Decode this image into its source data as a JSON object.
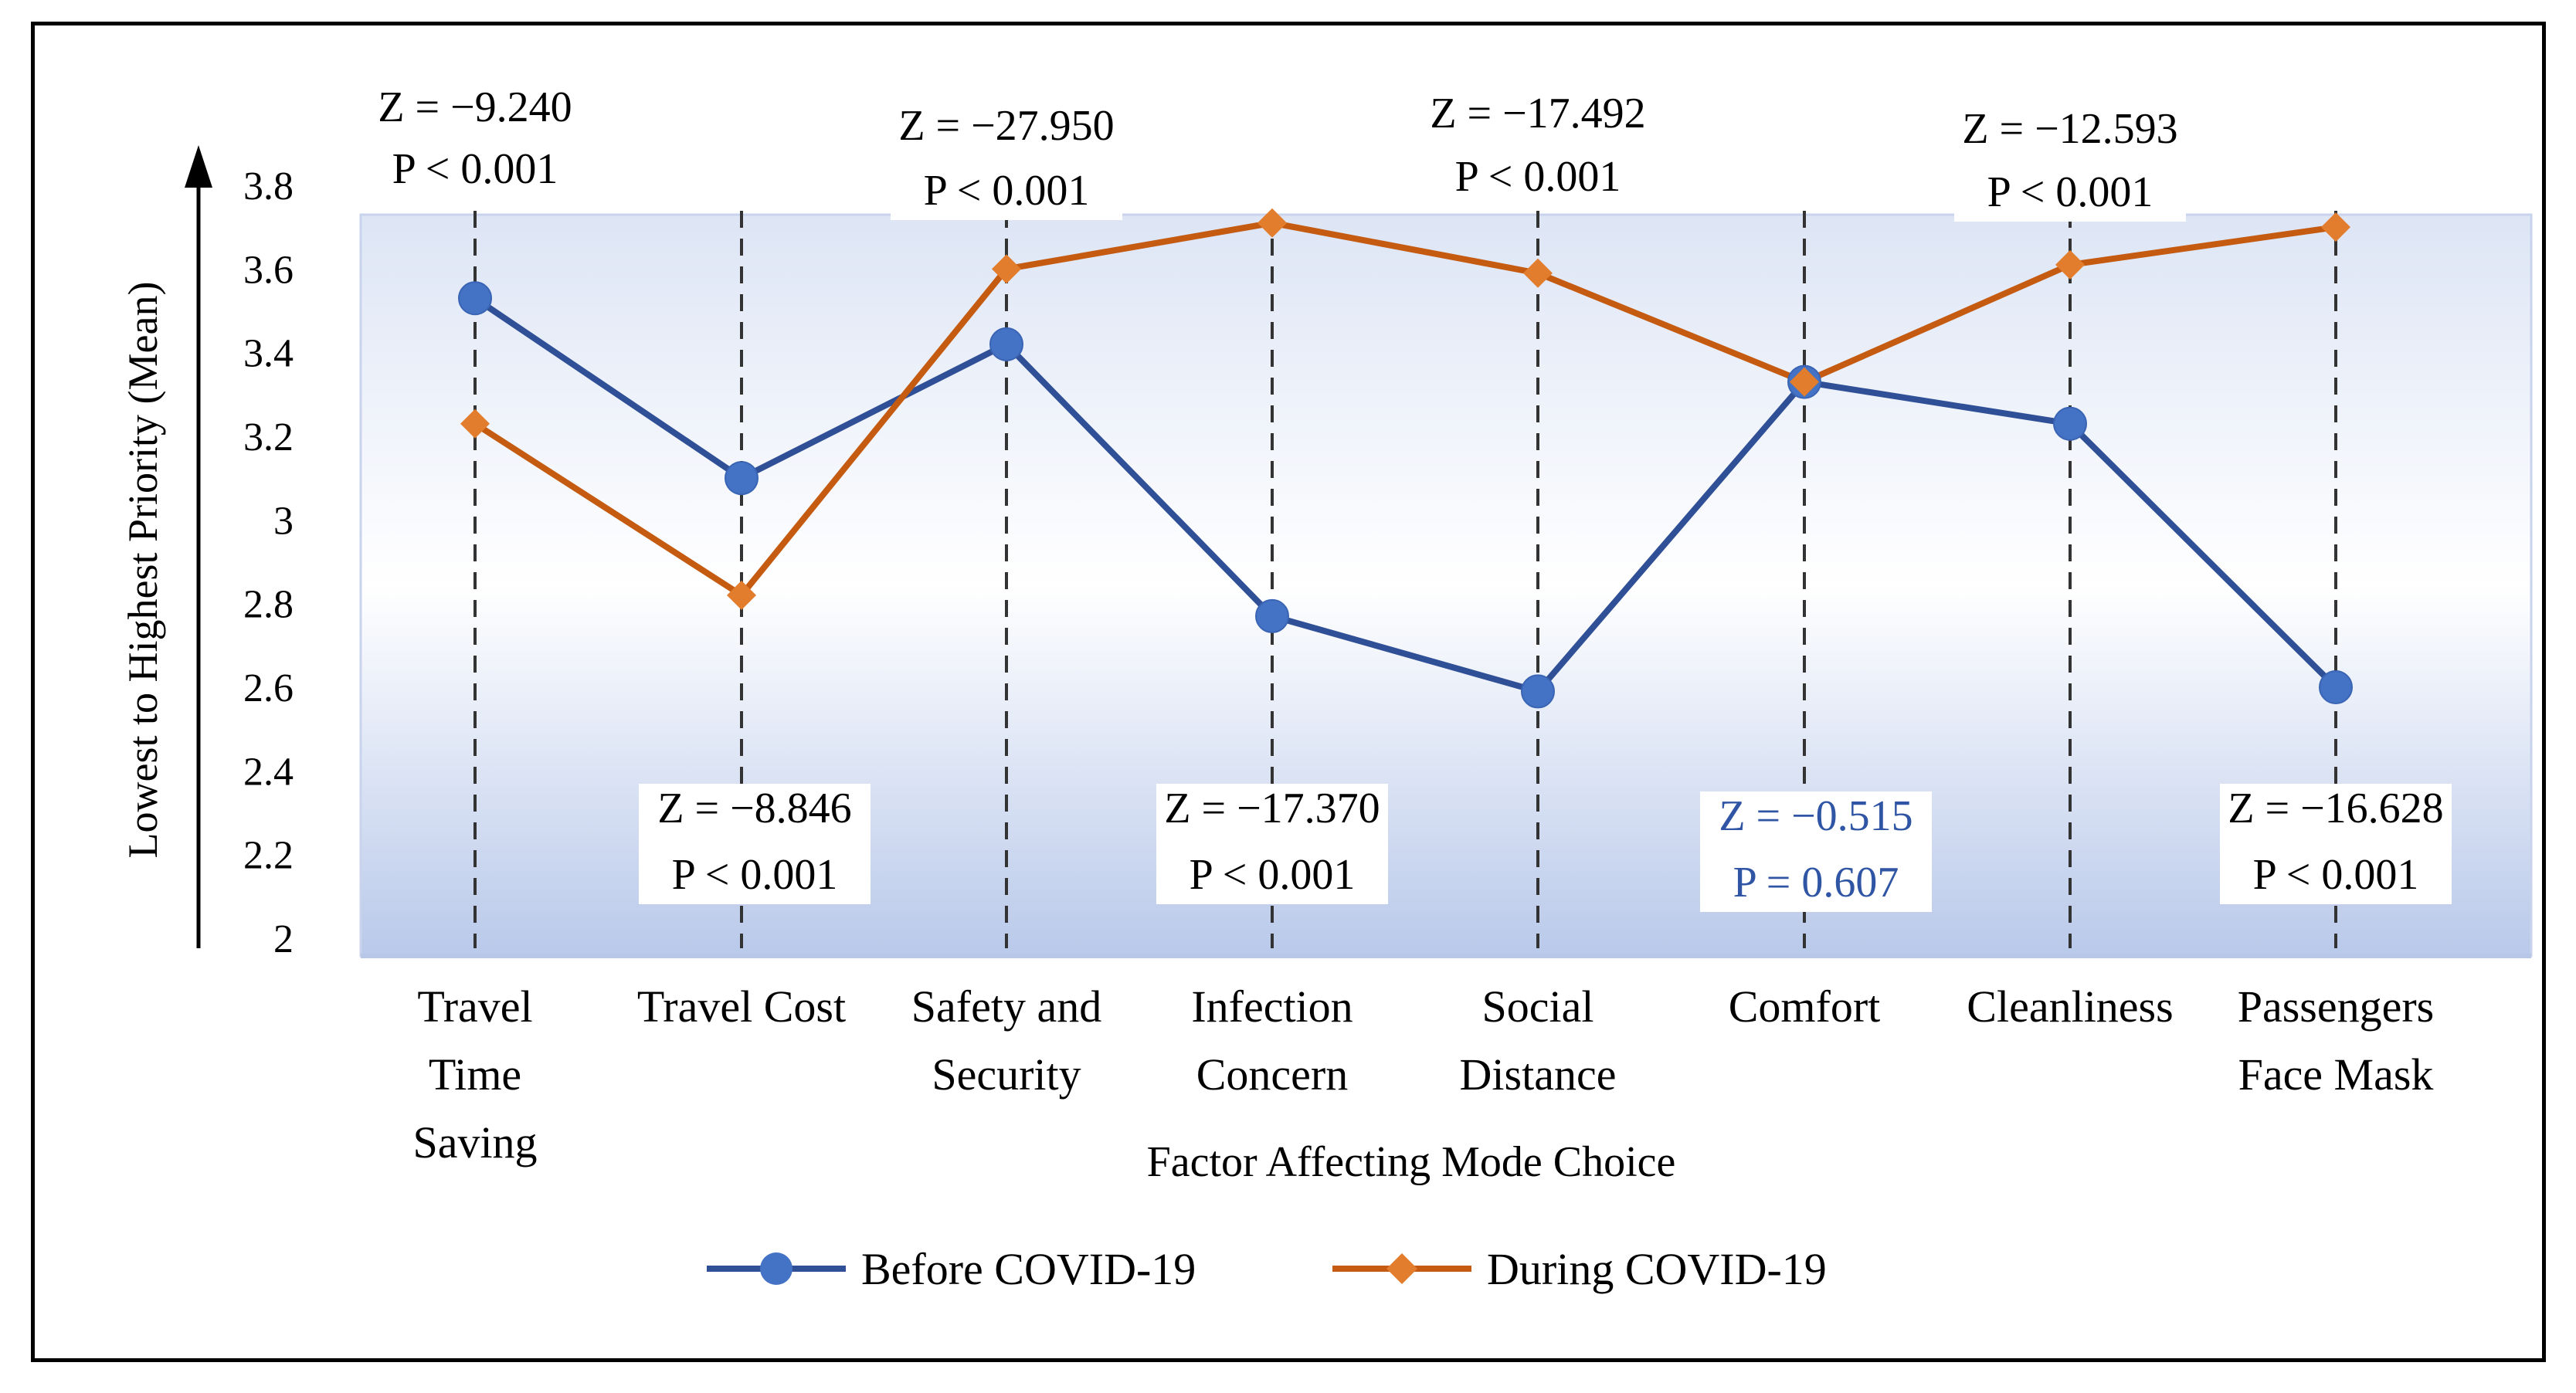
{
  "chart_data": {
    "type": "line",
    "title": "",
    "xlabel": "Factor Affecting Mode Choice",
    "ylabel": "Lowest to Highest Priority (Mean)",
    "ylim": [
      2,
      3.8
    ],
    "yticks": [
      "2",
      "2.2",
      "2.4",
      "2.6",
      "2.8",
      "3",
      "3.2",
      "3.4",
      "3.6",
      "3.8"
    ],
    "categories": [
      [
        "Travel",
        "Time",
        "Saving"
      ],
      [
        "Travel Cost"
      ],
      [
        "Safety and",
        "Security"
      ],
      [
        "Infection",
        "Concern"
      ],
      [
        "Social",
        "Distance"
      ],
      [
        "Comfort"
      ],
      [
        "Cleanliness"
      ],
      [
        "Passengers",
        "Face Mask"
      ]
    ],
    "series": [
      {
        "name": "Before COVID-19",
        "color": "#4472C4",
        "marker": "circle",
        "values": [
          3.53,
          3.1,
          3.42,
          2.77,
          2.59,
          3.33,
          3.23,
          2.6
        ]
      },
      {
        "name": "During COVID-19",
        "color": "#E27D2D",
        "marker": "diamond",
        "values": [
          3.23,
          2.82,
          3.6,
          3.71,
          3.59,
          3.33,
          3.61,
          3.7
        ]
      }
    ],
    "line_colors": {
      "before": "#2F4F96",
      "during": "#C55A11"
    },
    "annotations": [
      {
        "category": 0,
        "position": "top",
        "z": "Z = −9.240",
        "p": "P < 0.001",
        "color": "#000000"
      },
      {
        "category": 1,
        "position": "bottom",
        "z": "Z = −8.846",
        "p": "P < 0.001",
        "color": "#000000"
      },
      {
        "category": 2,
        "position": "top",
        "z": "Z = −27.950",
        "p": "P < 0.001",
        "color": "#000000"
      },
      {
        "category": 3,
        "position": "bottom",
        "z": "Z = −17.370",
        "p": "P < 0.001",
        "color": "#000000"
      },
      {
        "category": 4,
        "position": "top",
        "z": "Z = −17.492",
        "p": "P < 0.001",
        "color": "#000000"
      },
      {
        "category": 5,
        "position": "bottom",
        "z": "Z = −0.515",
        "p": "P = 0.607",
        "color": "#2F55A4"
      },
      {
        "category": 6,
        "position": "top",
        "z": "Z = −12.593",
        "p": "P < 0.001",
        "color": "#000000"
      },
      {
        "category": 7,
        "position": "bottom",
        "z": "Z = −16.628",
        "p": "P < 0.001",
        "color": "#000000"
      }
    ]
  }
}
